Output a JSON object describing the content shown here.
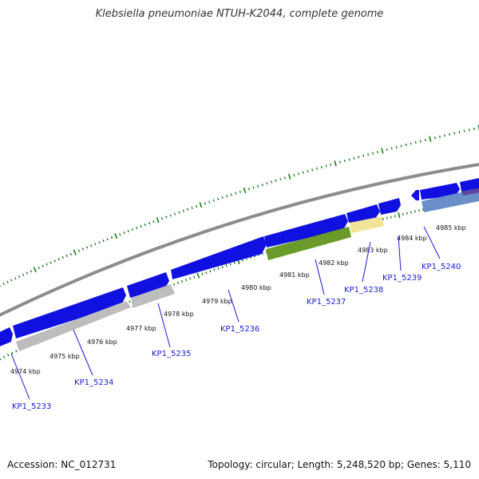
{
  "title": "Klebsiella pneumoniae NTUH-K2044, complete genome",
  "footer": {
    "accession": "Accession: NC_012731",
    "topology": "Topology: circular; Length: 5,248,520 bp; Genes: 5,110"
  },
  "colors": {
    "backbone": "#8c8c8c",
    "cds": "#1010e0",
    "pseudo_gray": "#bdbdbd",
    "rrna_green": "#6a9a2a",
    "misc_yellow": "#f0e49a",
    "light_blue": "#6a8ec8",
    "purple": "#6040a0",
    "tick_green": "#1e7a1e",
    "label_blue": "#1a1ad0"
  },
  "scale_labels": [
    "4974 kbp",
    "4975 kbp",
    "4976 kbp",
    "4977 kbp",
    "4978 kbp",
    "4979 kbp",
    "4980 kbp",
    "4981 kbp",
    "4982 kbp",
    "4983 kbp",
    "4984 kbp",
    "4985 kbp"
  ],
  "gene_labels": [
    "KP1_5233",
    "KP1_5234",
    "KP1_5235",
    "KP1_5236",
    "KP1_5237",
    "KP1_5238",
    "KP1_5239",
    "KP1_5240"
  ]
}
